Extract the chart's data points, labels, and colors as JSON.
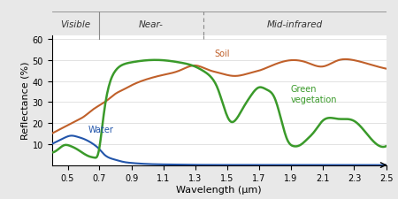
{
  "xlabel": "Wavelength (μm)",
  "ylabel": "Reflectance (%)",
  "xlim": [
    0.4,
    2.5
  ],
  "ylim": [
    0,
    62
  ],
  "yticks": [
    10,
    20,
    30,
    40,
    50,
    60
  ],
  "xticks": [
    0.5,
    0.7,
    0.9,
    1.1,
    1.3,
    1.5,
    1.7,
    1.9,
    2.1,
    2.3,
    2.5
  ],
  "background_color": "#e8e8e8",
  "plot_bg_color": "#ffffff",
  "soil_color": "#c0602a",
  "vegetation_color": "#3a9a2a",
  "water_color": "#2255aa",
  "region_divider_visible_near": 0.7,
  "region_divider_near_mid": 1.35,
  "region_label_visible": "Visible",
  "region_label_near": "Near-",
  "region_label_mid": "Mid-infrared",
  "label_water": "Water",
  "label_soil": "Soil",
  "label_veg": "Green\nvegetation",
  "water_x": [
    0.4,
    0.44,
    0.48,
    0.52,
    0.56,
    0.6,
    0.64,
    0.67,
    0.7,
    0.73,
    0.76,
    0.8,
    0.85,
    0.9,
    1.0,
    1.1,
    1.2,
    1.3,
    1.5,
    2.0,
    2.5
  ],
  "water_y": [
    10.0,
    11.5,
    13.0,
    14.0,
    13.5,
    12.5,
    11.0,
    9.5,
    7.5,
    5.0,
    3.5,
    2.5,
    1.5,
    1.0,
    0.5,
    0.3,
    0.2,
    0.1,
    0.05,
    0.02,
    0.0
  ],
  "soil_x": [
    0.4,
    0.45,
    0.5,
    0.55,
    0.6,
    0.65,
    0.7,
    0.75,
    0.8,
    0.85,
    0.9,
    1.0,
    1.1,
    1.2,
    1.3,
    1.35,
    1.4,
    1.45,
    1.5,
    1.55,
    1.6,
    1.65,
    1.7,
    1.8,
    1.9,
    2.0,
    2.1,
    2.2,
    2.3,
    2.4,
    2.5
  ],
  "soil_y": [
    15,
    17,
    19,
    21,
    23,
    26,
    28.5,
    31,
    34,
    36,
    38,
    41,
    43,
    45,
    47.5,
    46.5,
    45,
    44,
    43,
    42.5,
    43,
    44,
    45,
    48,
    50,
    49,
    47,
    50,
    50,
    48,
    46
  ],
  "veg_x": [
    0.4,
    0.44,
    0.48,
    0.52,
    0.56,
    0.6,
    0.64,
    0.67,
    0.69,
    0.71,
    0.73,
    0.76,
    0.8,
    0.85,
    0.9,
    1.0,
    1.1,
    1.2,
    1.3,
    1.35,
    1.4,
    1.44,
    1.48,
    1.52,
    1.56,
    1.6,
    1.65,
    1.7,
    1.75,
    1.8,
    1.84,
    1.88,
    1.92,
    1.96,
    2.0,
    2.05,
    2.1,
    2.2,
    2.3,
    2.4,
    2.5
  ],
  "veg_y": [
    6,
    7.5,
    9.5,
    9.0,
    7.5,
    5.5,
    4.0,
    3.5,
    5.0,
    14,
    26,
    38,
    45,
    48,
    49,
    50,
    50,
    49,
    47,
    45,
    42,
    37,
    28,
    21,
    22,
    27,
    33,
    37,
    36,
    32,
    22,
    12,
    9,
    9.5,
    12,
    16,
    21,
    22,
    21,
    13,
    9
  ]
}
